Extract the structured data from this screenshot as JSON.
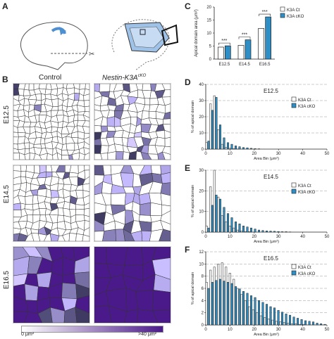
{
  "panel_labels": {
    "a": "A",
    "b": "B",
    "c": "C",
    "d": "D",
    "e": "E",
    "f": "F"
  },
  "panel_b": {
    "col_control": "Control",
    "col_mutant": "Nestin-K3A",
    "col_mutant_sup": "cKO",
    "rows": [
      "E12.5",
      "E14.5",
      "E16.5"
    ],
    "scale_min": "0 μm²",
    "scale_max": ">40 μm²"
  },
  "colors": {
    "ct": "#ffffff",
    "cko": "#2e8fc6",
    "purple_dark": "#4b1a8a",
    "purple_light": "#d8d2ea"
  },
  "chart_data": [
    {
      "type": "bar",
      "panel": "C",
      "categories": [
        "E12.5",
        "E14.5",
        "E16.5"
      ],
      "series": [
        {
          "name": "K3A Ct",
          "values": [
            4.6,
            5.3,
            11.8
          ]
        },
        {
          "name": "K3A cKO",
          "values": [
            5.1,
            7.4,
            16.2
          ]
        }
      ],
      "ylabel": "Apical domain area (μm²)",
      "ylim": [
        0,
        20
      ],
      "yticks": [
        "0",
        "5",
        "10",
        "15",
        "20"
      ],
      "annotations": [
        "***",
        "***",
        "***"
      ],
      "legend": "top-left"
    },
    {
      "type": "bar",
      "panel": "D",
      "title": "E12.5",
      "x": [
        0,
        1,
        2,
        3,
        4,
        5,
        6,
        7,
        8,
        9,
        10,
        11,
        12,
        13,
        14,
        15,
        16,
        17,
        18,
        19,
        20,
        21,
        22,
        23,
        24,
        25,
        26,
        27,
        28,
        29,
        30
      ],
      "series": [
        {
          "name": "K3A Ct",
          "values": [
            4,
            28,
            33,
            12,
            3,
            1,
            0.5,
            0.2,
            0.1,
            0,
            0,
            0,
            0,
            0,
            0,
            0,
            0,
            0,
            0,
            0,
            0,
            0,
            0,
            0,
            0,
            0,
            0,
            0,
            0,
            0,
            0
          ]
        },
        {
          "name": "K3A cKO",
          "values": [
            5,
            24,
            32,
            15,
            7,
            4,
            3,
            2,
            1.5,
            1,
            0.8,
            0.5,
            0.3,
            0.2,
            0,
            0,
            0,
            0,
            0,
            0,
            0,
            0,
            0,
            0,
            0,
            0,
            0,
            0,
            0,
            0,
            0
          ]
        }
      ],
      "xlabel": "Area Bin (μm²)",
      "ylabel": "% of apical domain",
      "ylim": [
        0,
        40
      ],
      "yticks": [
        "0",
        "10",
        "20",
        "30",
        "40"
      ],
      "xticks": [
        "0",
        "10",
        "20",
        "30",
        "40",
        "50"
      ],
      "legend": "top-right"
    },
    {
      "type": "bar",
      "panel": "E",
      "title": "E14.5",
      "x": [
        0,
        1,
        2,
        3,
        4,
        5,
        6,
        7,
        8,
        9,
        10,
        11,
        12,
        13,
        14,
        15,
        16,
        17,
        18,
        19,
        20,
        21,
        22,
        23,
        24,
        25,
        26,
        27,
        28,
        29,
        30
      ],
      "series": [
        {
          "name": "K3A Ct",
          "values": [
            3,
            22,
            30,
            17,
            8,
            5,
            3,
            2,
            1,
            0.5,
            0.3,
            0.2,
            0,
            0,
            0,
            0,
            0,
            0,
            0,
            0,
            0,
            0,
            0,
            0,
            0,
            0,
            0,
            0,
            0,
            0,
            0
          ]
        },
        {
          "name": "K3A cKO",
          "values": [
            2,
            13,
            18,
            16,
            12,
            9,
            7,
            5,
            4,
            3,
            2.5,
            2,
            1.5,
            1,
            0.8,
            0.6,
            0.5,
            0.4,
            0.3,
            0.2,
            0.2,
            0.1,
            0,
            0,
            0,
            0,
            0,
            0,
            0,
            0,
            0
          ]
        }
      ],
      "xlabel": "Area Bin (μm²)",
      "ylabel": "% of apical domain",
      "ylim": [
        0,
        30
      ],
      "yticks": [
        "0",
        "10",
        "20",
        "30"
      ],
      "xticks": [
        "0",
        "10",
        "20",
        "30",
        "40",
        "50"
      ],
      "legend": "top-right"
    },
    {
      "type": "bar",
      "panel": "F",
      "title": "E16.5",
      "x": [
        0,
        1,
        2,
        3,
        4,
        5,
        6,
        7,
        8,
        9,
        10,
        11,
        12,
        13,
        14,
        15,
        16,
        17,
        18,
        19,
        20,
        21,
        22,
        23,
        24,
        25,
        26,
        27,
        28,
        29,
        30
      ],
      "series": [
        {
          "name": "K3A Ct",
          "values": [
            7,
            9,
            9.5,
            10,
            10.2,
            9.5,
            8.5,
            7.5,
            6,
            5,
            4,
            3,
            2.5,
            2,
            1.5,
            1.2,
            1,
            0.8,
            0.6,
            0.5,
            0.4,
            0.3,
            0.2,
            0.2,
            0.1,
            0.1,
            0,
            0,
            0,
            0,
            0
          ]
        },
        {
          "name": "K3A cKO",
          "values": [
            6,
            7,
            7.3,
            7.5,
            7.2,
            7,
            6.8,
            6.3,
            5.9,
            5.5,
            5.2,
            4.8,
            4.5,
            4,
            3.7,
            3.4,
            3,
            2.8,
            2.4,
            2.1,
            1.8,
            1.6,
            1.3,
            1.1,
            0.9,
            0.7,
            0.6,
            0.5,
            0.3,
            0.2,
            0.1
          ]
        }
      ],
      "xlabel": "Area Bin (μm²)",
      "ylabel": "% of apical domain",
      "ylim": [
        0,
        12
      ],
      "yticks": [
        "0",
        "2",
        "4",
        "6",
        "8",
        "10",
        "12"
      ],
      "xticks": [
        "0",
        "10",
        "20",
        "30",
        "40",
        "50"
      ],
      "legend": "top-right"
    }
  ]
}
